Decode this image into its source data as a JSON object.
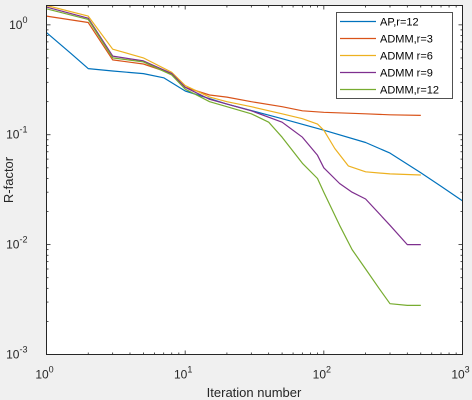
{
  "chart_data": {
    "type": "line",
    "xscale": "log",
    "yscale": "log",
    "xlim": [
      1,
      1000
    ],
    "ylim": [
      0.001,
      1.5
    ],
    "xlabel": "Iteration number",
    "ylabel": "R-factor",
    "grid": false,
    "legend_position": "top-right",
    "x_ticks": [
      {
        "value": 1,
        "base": "10",
        "exp": "0"
      },
      {
        "value": 10,
        "base": "10",
        "exp": "1"
      },
      {
        "value": 100,
        "base": "10",
        "exp": "2"
      },
      {
        "value": 1000,
        "base": "10",
        "exp": "3"
      }
    ],
    "y_ticks": [
      {
        "value": 0.001,
        "base": "10",
        "exp": "-3"
      },
      {
        "value": 0.01,
        "base": "10",
        "exp": "-2"
      },
      {
        "value": 0.1,
        "base": "10",
        "exp": "-1"
      },
      {
        "value": 1,
        "base": "10",
        "exp": "0"
      }
    ],
    "series": [
      {
        "name": "AP,r=12",
        "color": "#0072bd",
        "points": [
          [
            1,
            0.85
          ],
          [
            1.5,
            0.55
          ],
          [
            2,
            0.4
          ],
          [
            3,
            0.38
          ],
          [
            5,
            0.36
          ],
          [
            7,
            0.33
          ],
          [
            10,
            0.25
          ],
          [
            20,
            0.19
          ],
          [
            50,
            0.14
          ],
          [
            100,
            0.11
          ],
          [
            200,
            0.085
          ],
          [
            300,
            0.068
          ],
          [
            500,
            0.045
          ],
          [
            700,
            0.034
          ],
          [
            1000,
            0.025
          ]
        ]
      },
      {
        "name": "ADMM,r=3",
        "color": "#d95319",
        "points": [
          [
            1,
            1.2
          ],
          [
            2,
            1.05
          ],
          [
            3,
            0.48
          ],
          [
            5,
            0.44
          ],
          [
            8,
            0.36
          ],
          [
            10,
            0.27
          ],
          [
            15,
            0.23
          ],
          [
            20,
            0.22
          ],
          [
            30,
            0.2
          ],
          [
            50,
            0.18
          ],
          [
            70,
            0.165
          ],
          [
            100,
            0.16
          ],
          [
            200,
            0.155
          ],
          [
            300,
            0.152
          ],
          [
            500,
            0.15
          ]
        ]
      },
      {
        "name": "ADMM r=6",
        "color": "#edb120",
        "points": [
          [
            1,
            1.5
          ],
          [
            2,
            1.2
          ],
          [
            3,
            0.6
          ],
          [
            5,
            0.5
          ],
          [
            8,
            0.37
          ],
          [
            10,
            0.28
          ],
          [
            15,
            0.22
          ],
          [
            20,
            0.2
          ],
          [
            30,
            0.18
          ],
          [
            50,
            0.155
          ],
          [
            70,
            0.14
          ],
          [
            90,
            0.125
          ],
          [
            100,
            0.11
          ],
          [
            120,
            0.075
          ],
          [
            150,
            0.052
          ],
          [
            200,
            0.046
          ],
          [
            300,
            0.044
          ],
          [
            500,
            0.043
          ]
        ]
      },
      {
        "name": "ADMM r=9",
        "color": "#7e2f8e",
        "points": [
          [
            1,
            1.45
          ],
          [
            2,
            1.15
          ],
          [
            3,
            0.52
          ],
          [
            5,
            0.47
          ],
          [
            8,
            0.36
          ],
          [
            10,
            0.27
          ],
          [
            15,
            0.21
          ],
          [
            20,
            0.19
          ],
          [
            30,
            0.165
          ],
          [
            50,
            0.13
          ],
          [
            70,
            0.095
          ],
          [
            90,
            0.065
          ],
          [
            100,
            0.05
          ],
          [
            130,
            0.036
          ],
          [
            160,
            0.03
          ],
          [
            200,
            0.026
          ],
          [
            300,
            0.015
          ],
          [
            400,
            0.01
          ],
          [
            500,
            0.01
          ]
        ]
      },
      {
        "name": "ADMM,r=12",
        "color": "#77ac30",
        "points": [
          [
            1,
            1.4
          ],
          [
            2,
            1.12
          ],
          [
            3,
            0.5
          ],
          [
            5,
            0.46
          ],
          [
            8,
            0.35
          ],
          [
            10,
            0.26
          ],
          [
            15,
            0.2
          ],
          [
            20,
            0.18
          ],
          [
            30,
            0.155
          ],
          [
            40,
            0.13
          ],
          [
            50,
            0.095
          ],
          [
            70,
            0.055
          ],
          [
            90,
            0.04
          ],
          [
            100,
            0.03
          ],
          [
            130,
            0.015
          ],
          [
            160,
            0.009
          ],
          [
            200,
            0.006
          ],
          [
            250,
            0.004
          ],
          [
            300,
            0.0029
          ],
          [
            400,
            0.0028
          ],
          [
            500,
            0.0028
          ]
        ]
      }
    ]
  }
}
